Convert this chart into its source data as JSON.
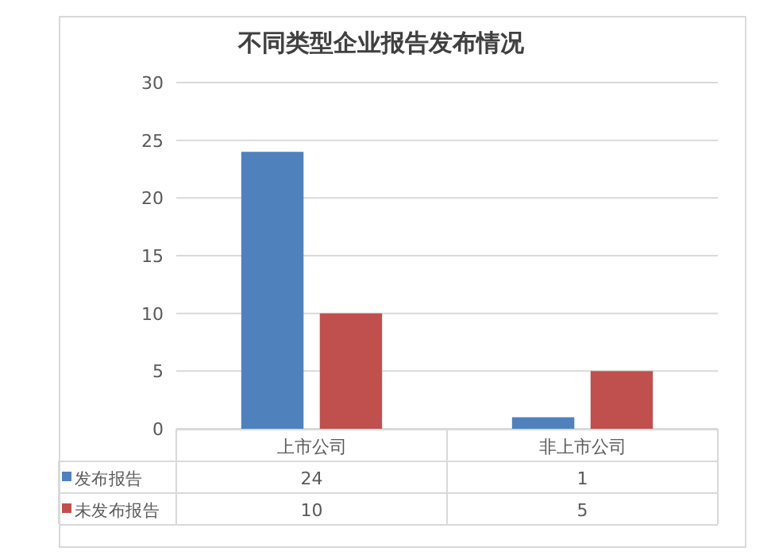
{
  "chart_data": {
    "type": "bar",
    "title": "不同类型企业报告发布情况",
    "categories": [
      "上市公司",
      "非上市公司"
    ],
    "series": [
      {
        "name": "发布报告",
        "color": "#4f81bd",
        "values": [
          24,
          1
        ]
      },
      {
        "name": "未发布报告",
        "color": "#c0504d",
        "values": [
          10,
          5
        ]
      }
    ],
    "ylim": [
      0,
      30
    ],
    "yticks": [
      0,
      5,
      10,
      15,
      20,
      25,
      30
    ],
    "grid": "y",
    "data_labels": true,
    "legend": "bottom left"
  }
}
